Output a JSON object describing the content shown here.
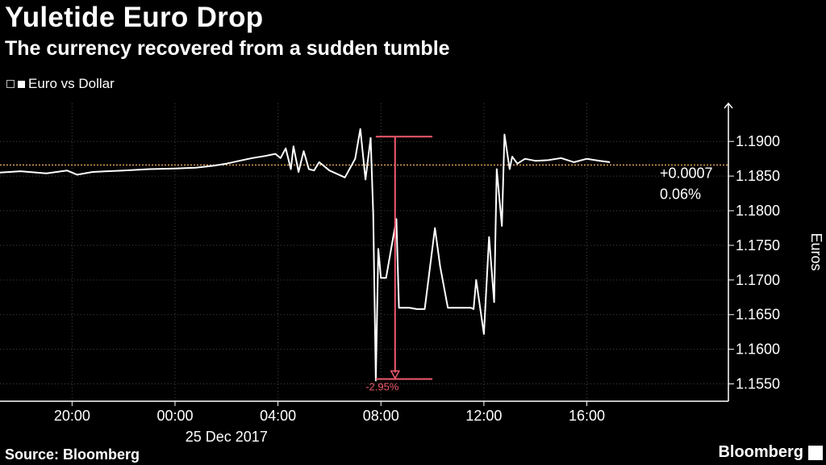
{
  "title": "Yuletide Euro Drop",
  "subtitle": "The currency recovered from a sudden tumble",
  "legend_label": "Euro vs Dollar",
  "source": "Source: Bloomberg",
  "brand": "Bloomberg",
  "colors": {
    "line": "#ffffff",
    "reference": "#f5b062",
    "annotation": "#f05a6e",
    "grid": "#444444"
  },
  "chart_data": {
    "type": "line",
    "ylabel": "Euros",
    "ylim": [
      1.1525,
      1.1955
    ],
    "yticks": [
      1.155,
      1.16,
      1.165,
      1.17,
      1.175,
      1.18,
      1.185,
      1.19
    ],
    "ytick_labels": [
      "1.1550",
      "1.1600",
      "1.1650",
      "1.1700",
      "1.1750",
      "1.1800",
      "1.1850",
      "1.1900"
    ],
    "xlim": [
      -6.8,
      21.5
    ],
    "xtick_labels": [
      {
        "x": -4,
        "label": "20:00"
      },
      {
        "x": 0,
        "label": "00:00"
      },
      {
        "x": 4,
        "label": "04:00"
      },
      {
        "x": 8,
        "label": "08:00"
      },
      {
        "x": 12,
        "label": "12:00"
      },
      {
        "x": 16,
        "label": "16:00"
      }
    ],
    "date_label": "25 Dec 2017",
    "series": [
      {
        "name": "Euro vs Dollar",
        "x": [
          -6.8,
          -6.0,
          -5.0,
          -4.2,
          -3.8,
          -3.2,
          -2.0,
          -1.0,
          0.0,
          0.8,
          1.5,
          2.0,
          2.5,
          3.0,
          3.5,
          3.9,
          4.1,
          4.3,
          4.5,
          4.6,
          4.8,
          5.0,
          5.2,
          5.4,
          5.6,
          6.0,
          6.6,
          7.0,
          7.2,
          7.4,
          7.6,
          7.7,
          7.8,
          7.9,
          8.0,
          8.2,
          8.6,
          8.7,
          9.1,
          9.4,
          9.7,
          10.1,
          10.3,
          10.6,
          11.5,
          11.6,
          11.7,
          12.0,
          12.2,
          12.4,
          12.5,
          12.7,
          12.8,
          13.0,
          13.1,
          13.3,
          13.6,
          14.0,
          14.5,
          15.0,
          15.5,
          16.0,
          16.5,
          16.9
        ],
        "y": [
          1.1855,
          1.1857,
          1.1854,
          1.1858,
          1.1852,
          1.1856,
          1.1858,
          1.186,
          1.1861,
          1.1862,
          1.1865,
          1.1868,
          1.1872,
          1.1876,
          1.1879,
          1.1882,
          1.1876,
          1.189,
          1.186,
          1.1893,
          1.1856,
          1.1886,
          1.186,
          1.1858,
          1.187,
          1.1858,
          1.1848,
          1.1875,
          1.1918,
          1.1845,
          1.1905,
          1.1795,
          1.1555,
          1.1745,
          1.1703,
          1.1703,
          1.1788,
          1.166,
          1.166,
          1.1658,
          1.1658,
          1.1775,
          1.172,
          1.166,
          1.166,
          1.1658,
          1.17,
          1.1622,
          1.1762,
          1.1668,
          1.186,
          1.1778,
          1.191,
          1.186,
          1.1878,
          1.1868,
          1.1875,
          1.1872,
          1.1873,
          1.1876,
          1.187,
          1.1875,
          1.1872,
          1.187
        ]
      }
    ],
    "reference_line": {
      "y": 1.1866
    },
    "change_label": "+0.0007",
    "change_pct_label": "0.06%",
    "drop_annotation": {
      "label": "-2.95%",
      "x": 8.55,
      "y_high": 1.1907,
      "y_low": 1.1557,
      "bracket_x_from": 7.8,
      "bracket_x_to": 10.0
    }
  }
}
